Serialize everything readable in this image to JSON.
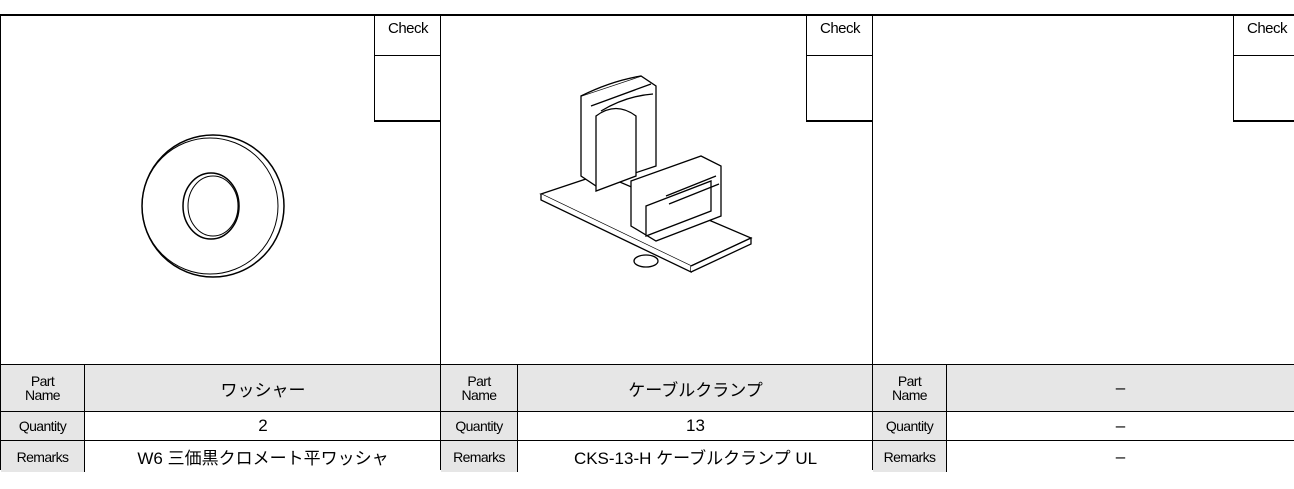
{
  "panels": [
    {
      "check": "Check",
      "part_name_label": "Part Name",
      "part_name": "ワッシャー",
      "quantity_label": "Quantity",
      "quantity": "2",
      "remarks_label": "Remarks",
      "remarks": "W6 三価黒クロメート平ワッシャ"
    },
    {
      "check": "Check",
      "part_name_label": "Part Name",
      "part_name": "ケーブルクランプ",
      "quantity_label": "Quantity",
      "quantity": "13",
      "remarks_label": "Remarks",
      "remarks": "CKS-13-H ケーブルクランプ UL"
    },
    {
      "check": "Check",
      "part_name_label": "Part Name",
      "part_name": "–",
      "quantity_label": "Quantity",
      "quantity": "–",
      "remarks_label": "Remarks",
      "remarks": "–"
    }
  ]
}
